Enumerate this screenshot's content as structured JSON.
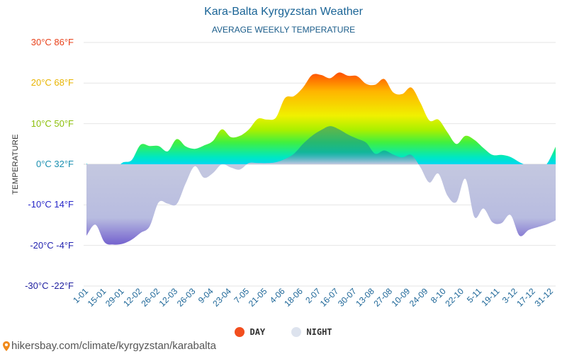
{
  "header": {
    "title": "Kara-Balta Kyrgyzstan Weather",
    "subtitle": "AVERAGE WEEKLY TEMPERATURE"
  },
  "footer": {
    "url": "hikersbay.com/climate/kyrgyzstan/karabalta"
  },
  "chart_data": {
    "type": "area",
    "title": "Kara-Balta Kyrgyzstan Weather",
    "subtitle": "AVERAGE WEEKLY TEMPERATURE",
    "ylabel": "TEMPERATURE",
    "ylim": [
      -30,
      30
    ],
    "y_ticks": [
      {
        "value": 30,
        "label": "30°C 86°F",
        "color": "#e8421b"
      },
      {
        "value": 20,
        "label": "20°C 68°F",
        "color": "#e8b400"
      },
      {
        "value": 10,
        "label": "10°C 50°F",
        "color": "#8cbf0a"
      },
      {
        "value": 0,
        "label": "0°C 32°F",
        "color": "#1a8fb0"
      },
      {
        "value": -10,
        "label": "-10°C 14°F",
        "color": "#2525c8"
      },
      {
        "value": -20,
        "label": "-20°C -4°F",
        "color": "#2424b0"
      },
      {
        "value": -30,
        "label": "-30°C -22°F",
        "color": "#2020a0"
      }
    ],
    "x_ticks": [
      "1-01",
      "15-01",
      "29-01",
      "12-02",
      "26-02",
      "12-03",
      "26-03",
      "9-04",
      "23-04",
      "7-05",
      "21-05",
      "4-06",
      "18-06",
      "2-07",
      "16-07",
      "30-07",
      "13-08",
      "27-08",
      "10-09",
      "24-09",
      "8-10",
      "22-10",
      "5-11",
      "19-11",
      "3-12",
      "17-12",
      "31-12"
    ],
    "series": [
      {
        "name": "DAY",
        "color": "#f24e1e",
        "values": [
          0.2,
          -1.6,
          -0.3,
          -1.4,
          0.4,
          1.0,
          4.8,
          4.5,
          4.5,
          3.2,
          6.2,
          4.4,
          3.8,
          4.6,
          5.7,
          8.6,
          6.7,
          7.0,
          8.6,
          11.2,
          11.0,
          11.5,
          16.3,
          16.8,
          18.9,
          22.0,
          22.0,
          21.2,
          22.6,
          21.8,
          21.7,
          19.8,
          19.6,
          21.0,
          17.7,
          17.3,
          18.9,
          15.2,
          10.8,
          11.0,
          7.9,
          5.0,
          7.0,
          6.0,
          4.0,
          2.3,
          2.3,
          1.8,
          0.5,
          -0.5,
          -1.2,
          0.0,
          4.3
        ]
      },
      {
        "name": "NIGHT",
        "color": "#dde3ee",
        "values": [
          -17.6,
          -14.9,
          -19.2,
          -19.8,
          -19.6,
          -18.6,
          -16.9,
          -15.3,
          -9.4,
          -9.7,
          -9.8,
          -4.7,
          -0.5,
          -3.3,
          -2.2,
          0.0,
          -0.8,
          -1.3,
          0.3,
          0.3,
          0.3,
          0.5,
          1.3,
          2.6,
          5.0,
          7.0,
          8.4,
          9.4,
          8.6,
          7.3,
          6.3,
          5.3,
          2.6,
          3.4,
          2.4,
          1.7,
          2.3,
          -0.7,
          -4.5,
          -2.3,
          -7.7,
          -9.3,
          -3.6,
          -13.0,
          -10.9,
          -14.3,
          -14.5,
          -12.5,
          -17.6,
          -16.2,
          -15.5,
          -14.8,
          -13.8
        ]
      }
    ],
    "legend": [
      "DAY",
      "NIGHT"
    ],
    "grid": true
  }
}
